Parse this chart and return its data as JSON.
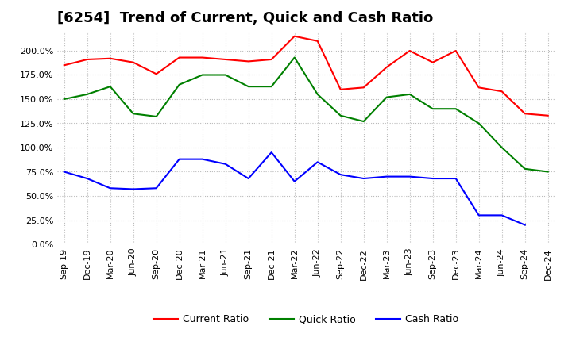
{
  "title": "[6254]  Trend of Current, Quick and Cash Ratio",
  "x_labels": [
    "Sep-19",
    "Dec-19",
    "Mar-20",
    "Jun-20",
    "Sep-20",
    "Dec-20",
    "Mar-21",
    "Jun-21",
    "Sep-21",
    "Dec-21",
    "Mar-22",
    "Jun-22",
    "Sep-22",
    "Dec-22",
    "Mar-23",
    "Jun-23",
    "Sep-23",
    "Dec-23",
    "Mar-24",
    "Jun-24",
    "Sep-24",
    "Dec-24"
  ],
  "current_ratio": [
    185,
    191,
    192,
    188,
    176,
    193,
    193,
    191,
    189,
    191,
    215,
    210,
    160,
    162,
    183,
    200,
    188,
    200,
    162,
    158,
    135,
    133
  ],
  "quick_ratio": [
    150,
    155,
    163,
    135,
    132,
    165,
    175,
    175,
    163,
    163,
    193,
    155,
    133,
    127,
    152,
    155,
    140,
    140,
    125,
    100,
    78,
    75
  ],
  "cash_ratio": [
    75,
    68,
    58,
    57,
    58,
    88,
    88,
    83,
    68,
    95,
    65,
    85,
    72,
    68,
    70,
    70,
    68,
    68,
    30,
    30,
    20,
    null
  ],
  "current_color": "#ff0000",
  "quick_color": "#008000",
  "cash_color": "#0000ff",
  "ylim": [
    0,
    220
  ],
  "ytick_vals": [
    0,
    25,
    50,
    75,
    100,
    125,
    150,
    175,
    200
  ],
  "background_color": "#ffffff",
  "plot_bg_color": "#ffffff",
  "grid_color": "#bbbbbb",
  "title_fontsize": 13,
  "legend_fontsize": 9,
  "tick_fontsize": 8
}
